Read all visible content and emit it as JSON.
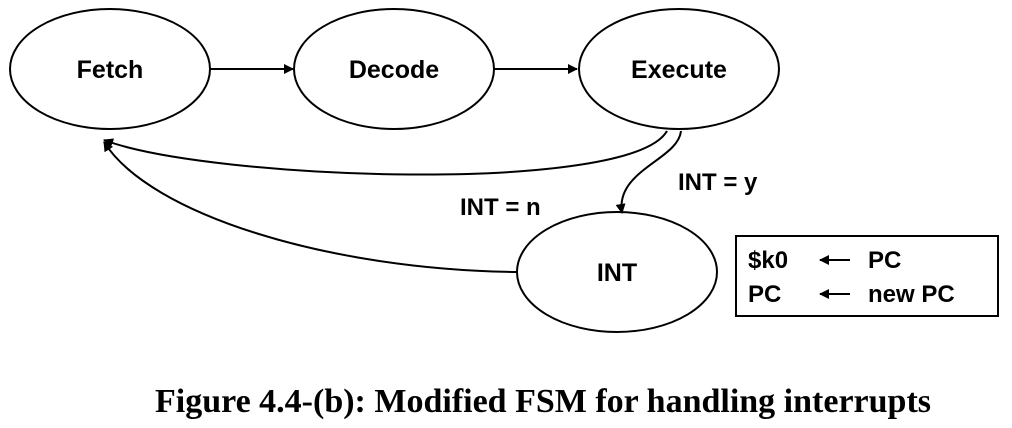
{
  "states": {
    "fetch": "Fetch",
    "decode": "Decode",
    "execute": "Execute",
    "int": "INT"
  },
  "edges": {
    "int_yes": "INT = y",
    "int_no": "INT = n"
  },
  "actions": {
    "row1_left": "$k0",
    "row1_right": "PC",
    "row2_left": "PC",
    "row2_right": "new PC"
  },
  "caption": "Figure 4.4-(b): Modified FSM for handling interrupts",
  "colors": {
    "stroke": "#000000",
    "background": "#ffffff"
  }
}
